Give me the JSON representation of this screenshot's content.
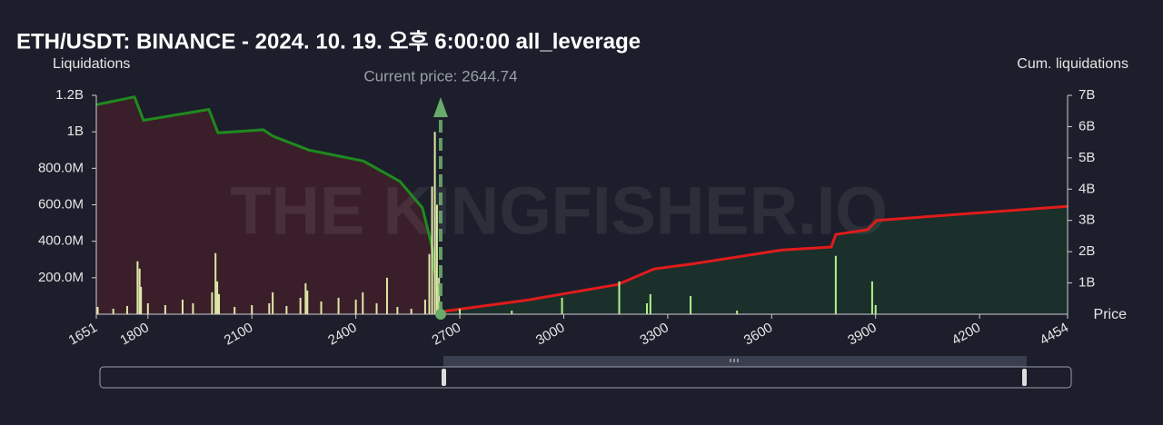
{
  "chart_data": {
    "type": "combo",
    "title": "ETH/USDT: BINANCE - 2024. 10. 19. 오후 6:00:00 all_leverage",
    "y_label": "Liquidations",
    "y2_label": "Cum. liquidations",
    "x_label": "Price",
    "watermark": "THE KINGFISHER.IO",
    "current_price": {
      "value": 2644.74,
      "label": "Current price: 2644.74"
    },
    "xlim": [
      1651,
      4454
    ],
    "ylim": [
      0,
      1200000000
    ],
    "y2lim": [
      0,
      7000000000
    ],
    "xticks": [
      1651,
      1800,
      2100,
      2400,
      2700,
      3000,
      3300,
      3600,
      3900,
      4200,
      4454
    ],
    "yticks": [
      {
        "value": 200000000,
        "label": "200.0M"
      },
      {
        "value": 400000000,
        "label": "400.0M"
      },
      {
        "value": 600000000,
        "label": "600.0M"
      },
      {
        "value": 800000000,
        "label": "800.0M"
      },
      {
        "value": 1000000000,
        "label": "1B"
      },
      {
        "value": 1200000000,
        "label": "1.2B"
      }
    ],
    "y2ticks": [
      {
        "value": 1000000000,
        "label": "1B"
      },
      {
        "value": 2000000000,
        "label": "2B"
      },
      {
        "value": 3000000000,
        "label": "3B"
      },
      {
        "value": 4000000000,
        "label": "4B"
      },
      {
        "value": 5000000000,
        "label": "5B"
      },
      {
        "value": 6000000000,
        "label": "6B"
      },
      {
        "value": 7000000000,
        "label": "7B"
      }
    ],
    "series": [
      {
        "type": "bar",
        "color": "#dfe8a8",
        "x": [
          1655,
          1700,
          1740,
          1770,
          1776,
          1780,
          1800,
          1850,
          1900,
          1930,
          1985,
          1995,
          2000,
          2005,
          2050,
          2100,
          2150,
          2160,
          2200,
          2240,
          2255,
          2260,
          2300,
          2350,
          2400,
          2420,
          2460,
          2490,
          2520,
          2560,
          2600,
          2612,
          2620,
          2628,
          2634,
          2640
        ],
        "values": [
          40000000,
          30000000,
          45000000,
          290000000,
          250000000,
          150000000,
          60000000,
          50000000,
          80000000,
          60000000,
          120000000,
          335000000,
          180000000,
          110000000,
          40000000,
          50000000,
          60000000,
          120000000,
          45000000,
          90000000,
          170000000,
          130000000,
          70000000,
          90000000,
          80000000,
          120000000,
          60000000,
          200000000,
          40000000,
          30000000,
          80000000,
          330000000,
          700000000,
          1000000000,
          600000000,
          200000000
        ]
      },
      {
        "type": "bar",
        "color": "#b4f08c",
        "x": [
          2700,
          2850,
          2995,
          3160,
          3240,
          3250,
          3366,
          3500,
          3785,
          3890,
          3900
        ],
        "values": [
          30000000,
          20000000,
          90000000,
          180000000,
          60000000,
          110000000,
          100000000,
          20000000,
          320000000,
          180000000,
          50000000
        ]
      },
      {
        "type": "line",
        "axis": "y2",
        "color": "#1f8a1f",
        "fill": "#3a1f2a",
        "x": [
          1651,
          1761,
          1787,
          1976,
          2002,
          2133,
          2160,
          2265,
          2422,
          2527,
          2592,
          2619,
          2642
        ],
        "values": [
          6700000000,
          6950000000,
          6200000000,
          6550000000,
          5800000000,
          5900000000,
          5700000000,
          5250000000,
          4900000000,
          4250000000,
          3400000000,
          2200000000,
          0
        ]
      },
      {
        "type": "line",
        "axis": "y2",
        "color": "#e01b1b",
        "fill": "#1b2f2b",
        "x": [
          2658,
          2894,
          3156,
          3261,
          3366,
          3628,
          3772,
          3785,
          3877,
          3903,
          4454
        ],
        "values": [
          100000000,
          450000000,
          950000000,
          1450000000,
          1600000000,
          2050000000,
          2150000000,
          2550000000,
          2700000000,
          3000000000,
          3450000000
        ]
      }
    ]
  }
}
